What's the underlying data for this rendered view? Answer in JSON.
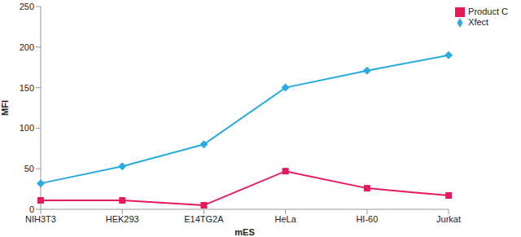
{
  "chart_data": {
    "type": "line",
    "categories": [
      "NIH3T3",
      "HEK293",
      "E14TG2A",
      "HeLa",
      "HI-60",
      "Jurkat"
    ],
    "x_label": "mES",
    "y_label": "MFI",
    "ylim": [
      0,
      250
    ],
    "yticks": [
      0,
      50,
      100,
      150,
      200,
      250
    ],
    "grid": false,
    "legend": "upper right",
    "series": [
      {
        "name": "Xfect",
        "color": "#29aae1",
        "marker": "diamond",
        "values": [
          32,
          53,
          80,
          150,
          171,
          190
        ]
      },
      {
        "name": "Product C",
        "color": "#e6195a",
        "marker": "square",
        "values": [
          11,
          11,
          5,
          47,
          26,
          17
        ]
      }
    ]
  }
}
